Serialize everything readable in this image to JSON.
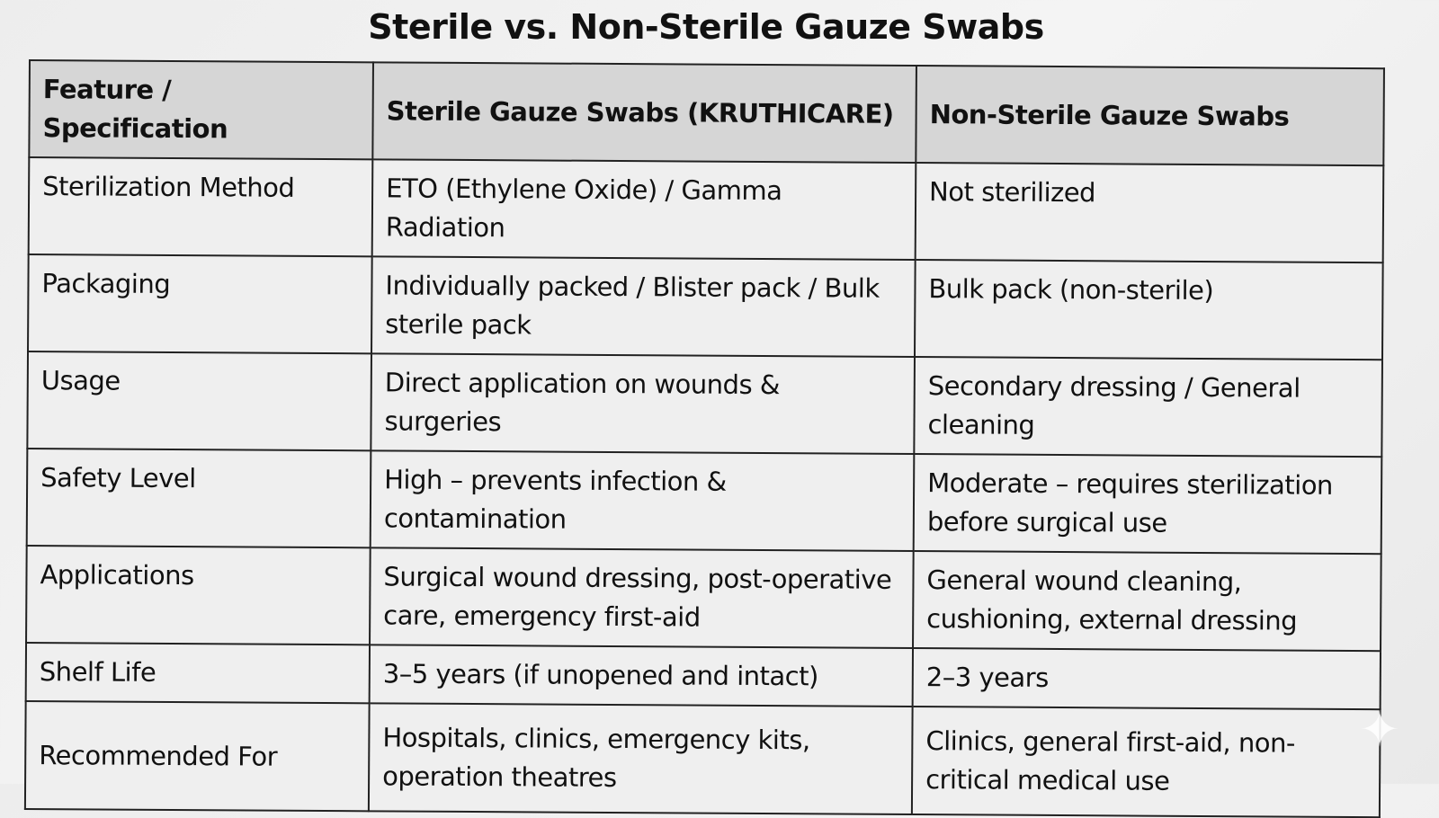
{
  "title": "Sterile vs. Non-Sterile Gauze Swabs",
  "headers": [
    "Feature / Specification",
    "Sterile Gauze Swabs (KRUTHICARE)",
    "Non-Sterile Gauze Swabs"
  ],
  "rows": [
    [
      "Sterilization Method",
      "ETO (Ethylene Oxide) / Gamma Radiation",
      "Not sterilized"
    ],
    [
      "Packaging",
      "Individually packed / Blister pack / Bulk sterile pack",
      "Bulk pack (non-sterile)"
    ],
    [
      "Usage",
      "Direct application on wounds & surgeries",
      "Secondary dressing / General cleaning"
    ],
    [
      "Safety Level",
      "High – prevents infection & contamination",
      "Moderate – requires sterilization before surgical use"
    ],
    [
      "Applications",
      "Surgical wound dressing, post-operative care, emergency first-aid",
      "General wound cleaning, cushioning, external dressing"
    ],
    [
      "Shelf Life",
      "3–5 years (if unopened and intact)",
      "2–3 years"
    ],
    [
      "Recommended For",
      "Hospitals, clinics, emergency kits, operation theatres",
      "Clinics, general first-aid, non-critical medical use"
    ]
  ],
  "colors": {
    "header_bg": "#d6d6d6",
    "cell_bg": "#efefef",
    "border": "#222222"
  },
  "icons": {
    "corner": "sparkle-icon"
  }
}
